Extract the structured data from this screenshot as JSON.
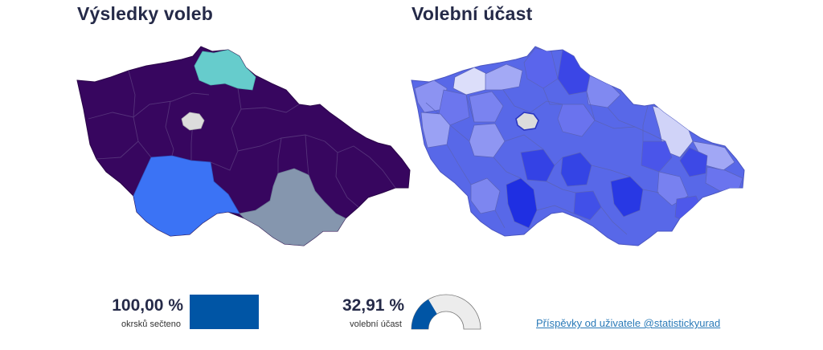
{
  "titles": {
    "results": "Výsledky voleb",
    "turnout": "Volební účast"
  },
  "colors": {
    "party_main": "#37065f",
    "party_north": "#66cccc",
    "party_south_west": "#3b73f5",
    "party_south_east": "#8596ae",
    "no_data": "#dcdcdc",
    "counted_bar": "#0055a5",
    "gauge_fill": "#0055a5",
    "gauge_track": "#ececec",
    "link": "#2a7ab8"
  },
  "stats": {
    "counted": {
      "value": "100,00 %",
      "label": "okrsků sečteno",
      "fraction": 1.0
    },
    "turnout": {
      "value": "32,91 %",
      "label": "volební účast",
      "fraction": 0.3291
    }
  },
  "link": {
    "text": "Příspěvky od uživatele @statistickyurad"
  }
}
